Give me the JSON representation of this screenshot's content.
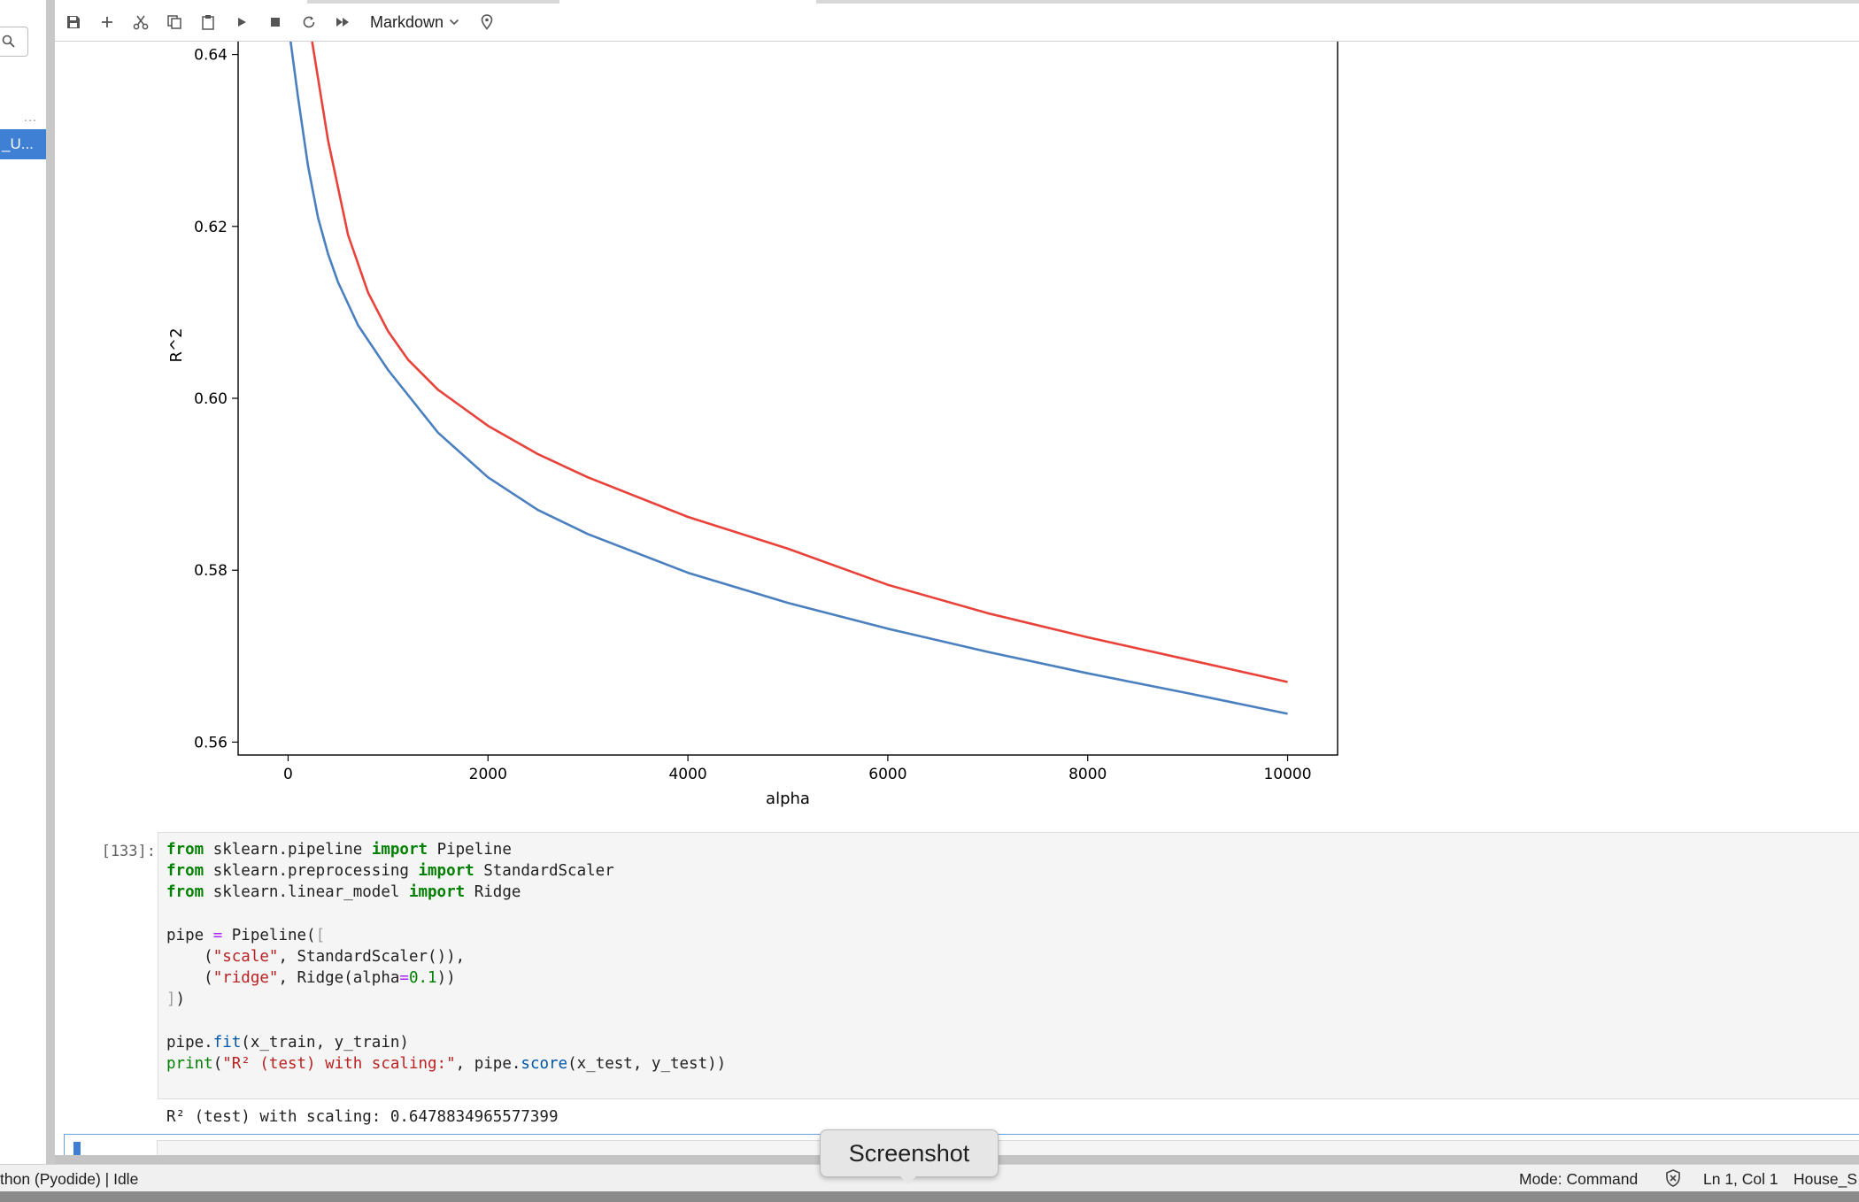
{
  "toolbar": {
    "cell_type": "Markdown"
  },
  "sidebar": {
    "file_label": "_U..."
  },
  "chart_data": {
    "type": "line",
    "xlabel": "alpha",
    "ylabel": "R^2",
    "xlim": [
      -500,
      10500
    ],
    "ylim": [
      0.5585,
      0.6415
    ],
    "x_ticks": [
      0,
      2000,
      4000,
      6000,
      8000,
      10000
    ],
    "y_ticks": [
      0.56,
      0.58,
      0.6,
      0.62,
      0.64
    ],
    "y_tick_labels": [
      "0.56",
      "0.58",
      "0.60",
      "0.62",
      "0.64"
    ],
    "grid": false,
    "legend": "none",
    "series": [
      {
        "color": "#e8423a",
        "x": [
          240,
          400,
          600,
          800,
          1000,
          1200,
          1500,
          2000,
          2500,
          3000,
          4000,
          5000,
          6000,
          7000,
          8000,
          9000,
          10000
        ],
        "y": [
          0.6415,
          0.63,
          0.619,
          0.6123,
          0.6078,
          0.6045,
          0.601,
          0.5968,
          0.5935,
          0.5908,
          0.5862,
          0.5825,
          0.5783,
          0.575,
          0.5722,
          0.5696,
          0.567
        ]
      },
      {
        "color": "#4a7fc0",
        "x": [
          25,
          100,
          200,
          300,
          400,
          500,
          700,
          1000,
          1500,
          2000,
          2500,
          3000,
          4000,
          5000,
          6000,
          7000,
          8000,
          9000,
          10000
        ],
        "y": [
          0.6415,
          0.635,
          0.627,
          0.621,
          0.6168,
          0.6135,
          0.6085,
          0.6033,
          0.596,
          0.5908,
          0.587,
          0.5842,
          0.5797,
          0.5762,
          0.5732,
          0.5705,
          0.568,
          0.5657,
          0.5633
        ]
      }
    ]
  },
  "cell": {
    "prompt": "[133]:",
    "code": {
      "l1": {
        "k1": "from",
        "mod": " sklearn.pipeline ",
        "k2": "import",
        "name": " Pipeline"
      },
      "l2": {
        "k1": "from",
        "mod": " sklearn.preprocessing ",
        "k2": "import",
        "name": " StandardScaler"
      },
      "l3": {
        "k1": "from",
        "mod": " sklearn.linear_model ",
        "k2": "import",
        "name": " Ridge"
      },
      "l5": {
        "a": "pipe ",
        "op": "=",
        "b": " Pipeline(",
        "br": "["
      },
      "l6": {
        "a": "    (",
        "str": "\"scale\"",
        "b": ", StandardScaler()),"
      },
      "l7": {
        "a": "    (",
        "str": "\"ridge\"",
        "b": ", Ridge(alpha",
        "op": "=",
        "num": "0.1",
        "c": "))"
      },
      "l8": {
        "br": "]",
        "b": ")"
      },
      "l10": {
        "a": "pipe.",
        "fn": "fit",
        "b": "(x_train, y_train)"
      },
      "l11": {
        "bi": "print",
        "a": "(",
        "str": "\"R² (test) with scaling:\"",
        "b": ", pipe.",
        "fn": "score",
        "c": "(x_test, y_test))"
      }
    },
    "output": "R² (test) with scaling: 0.6478834965577399"
  },
  "status": {
    "kernel": "thon (Pyodide) | Idle",
    "mode": "Mode: Command",
    "position": "Ln 1, Col 1",
    "file": "House_S"
  },
  "tooltip": "Screenshot"
}
